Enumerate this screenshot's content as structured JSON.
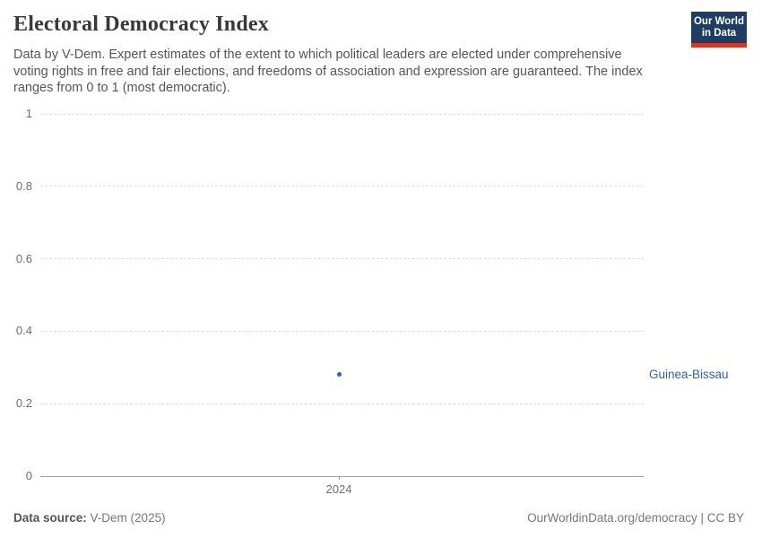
{
  "header": {
    "title": "Electoral Democracy Index",
    "logo": {
      "line1": "Our World",
      "line2": "in Data"
    },
    "subtitle_lines": [
      "Data by V-Dem. Expert estimates of the extent to which political leaders are elected under comprehensive",
      "voting rights in free and fair elections, and freedoms of association and expression are guaranteed. The index",
      "ranges from 0 to 1 (most democratic)."
    ]
  },
  "chart_data": {
    "type": "scatter",
    "title": "Electoral Democracy Index",
    "x": [
      2024
    ],
    "series": [
      {
        "name": "Guinea-Bissau",
        "values": [
          0.28
        ]
      }
    ],
    "ylim": [
      0,
      1
    ],
    "yticks": [
      1,
      0.8,
      0.6,
      0.4,
      0.2,
      0
    ],
    "ytick_labels": [
      "1",
      "0.8",
      "0.6",
      "0.4",
      "0.2",
      "0"
    ],
    "xticks": [
      2024
    ],
    "xtick_label": "2024",
    "grid": true,
    "legend_position": "right-inline",
    "ylabel": "",
    "xlabel": ""
  },
  "footer": {
    "source_label": "Data source:",
    "source_value": "V-Dem (2025)",
    "right_text": "OurWorldinData.org/democracy | CC BY"
  },
  "colors": {
    "accent_blue": "#3360a9",
    "logo_navy": "#1d3d63",
    "logo_red": "#d8352a",
    "grid": "#dddddd",
    "axis": "#a1a1a1",
    "tick_text": "#6e6e6e"
  }
}
